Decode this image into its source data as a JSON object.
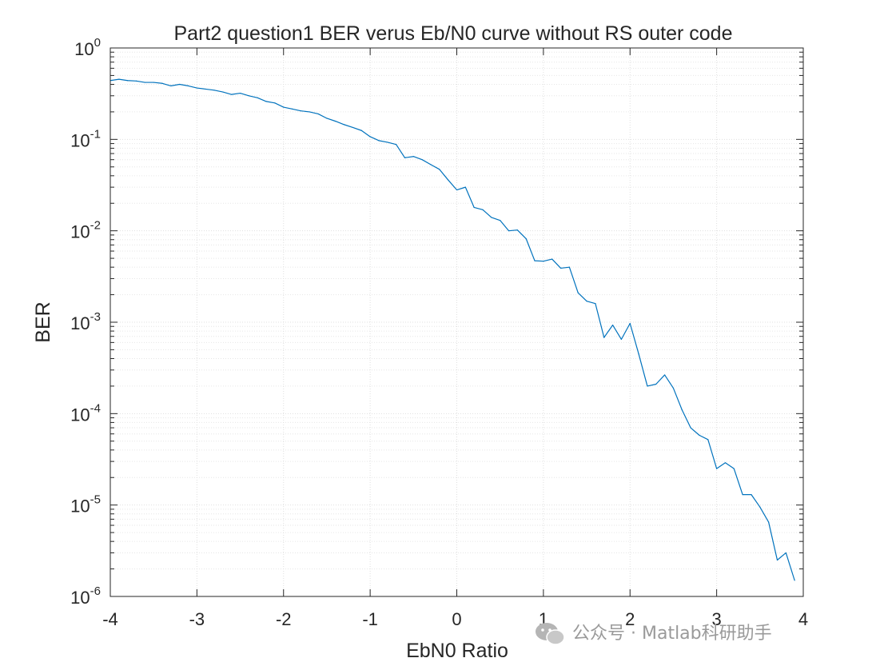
{
  "chart_data": {
    "type": "line",
    "title": "Part2 question1 BER verus Eb/N0 curve without RS outer code",
    "xlabel": "EbN0 Ratio",
    "ylabel": "BER",
    "xlim": [
      -4,
      4
    ],
    "ylim": [
      1e-06,
      1
    ],
    "yscale": "log",
    "grid": true,
    "minor_grid": true,
    "x_ticks": [
      -4,
      -3,
      -2,
      -1,
      0,
      1,
      2,
      3,
      4
    ],
    "x_tick_labels": [
      "-4",
      "-3",
      "-2",
      "-1",
      "0",
      "1",
      "2",
      "3",
      "4"
    ],
    "y_tick_exponents": [
      0,
      -1,
      -2,
      -3,
      -4,
      -5,
      -6
    ],
    "y_tick_exponent_labels": [
      "0",
      "-1",
      "-2",
      "-3",
      "-4",
      "-5",
      "-6"
    ],
    "y_tick_base": "10",
    "series": [
      {
        "color": "#0072bd",
        "x": [
          -4.0,
          -3.9,
          -3.8,
          -3.7,
          -3.6,
          -3.5,
          -3.4,
          -3.3,
          -3.2,
          -3.1,
          -3.0,
          -2.9,
          -2.8,
          -2.7,
          -2.6,
          -2.5,
          -2.4,
          -2.3,
          -2.2,
          -2.1,
          -2.0,
          -1.9,
          -1.8,
          -1.7,
          -1.6,
          -1.5,
          -1.4,
          -1.3,
          -1.2,
          -1.1,
          -1.0,
          -0.9,
          -0.8,
          -0.7,
          -0.6,
          -0.5,
          -0.4,
          -0.3,
          -0.2,
          -0.1,
          0.0,
          0.1,
          0.2,
          0.3,
          0.4,
          0.5,
          0.6,
          0.7,
          0.8,
          0.9,
          1.0,
          1.1,
          1.2,
          1.3,
          1.4,
          1.5,
          1.6,
          1.7,
          1.8,
          1.9,
          2.0,
          2.1,
          2.2,
          2.3,
          2.4,
          2.5,
          2.6,
          2.7,
          2.8,
          2.9,
          3.0,
          3.1,
          3.2,
          3.3,
          3.4,
          3.5,
          3.6,
          3.7,
          3.8,
          3.9
        ],
        "y": [
          0.44,
          0.455,
          0.44,
          0.435,
          0.42,
          0.42,
          0.41,
          0.385,
          0.4,
          0.385,
          0.365,
          0.355,
          0.345,
          0.33,
          0.31,
          0.32,
          0.3,
          0.285,
          0.26,
          0.25,
          0.225,
          0.215,
          0.205,
          0.2,
          0.19,
          0.17,
          0.158,
          0.145,
          0.135,
          0.125,
          0.107,
          0.097,
          0.093,
          0.088,
          0.063,
          0.065,
          0.06,
          0.053,
          0.047,
          0.036,
          0.028,
          0.03,
          0.018,
          0.017,
          0.014,
          0.013,
          0.01,
          0.0102,
          0.0082,
          0.0047,
          0.00465,
          0.0049,
          0.0039,
          0.004,
          0.0021,
          0.0017,
          0.0016,
          0.00068,
          0.00093,
          0.00065,
          0.00097,
          0.00045,
          0.0002,
          0.00021,
          0.000265,
          0.00019,
          0.00011,
          7e-05,
          5.8e-05,
          5.2e-05,
          2.5e-05,
          2.9e-05,
          2.5e-05,
          1.3e-05,
          1.3e-05,
          9.5e-06,
          6.5e-06,
          2.5e-06,
          3e-06,
          1.5e-06
        ]
      }
    ]
  },
  "watermark": {
    "text": "公众号 · Matlab科研助手",
    "icon": "wechat-icon"
  }
}
